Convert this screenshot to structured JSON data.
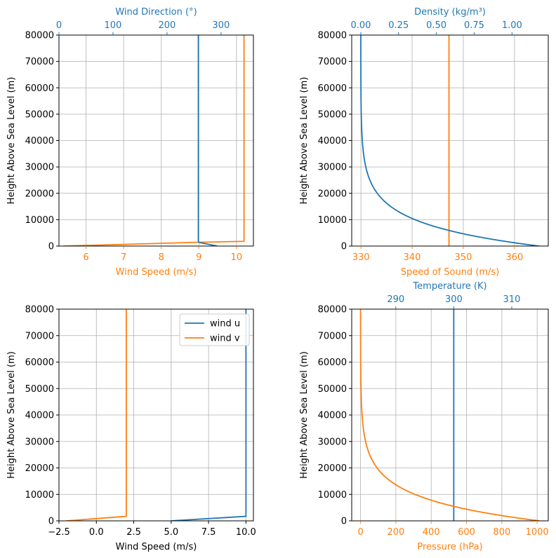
{
  "colors": {
    "blue": "#1f77b4",
    "orange": "#ff7f0e",
    "grid": "#b0b0b0",
    "axis": "#000000"
  },
  "chart_data": [
    {
      "type": "line",
      "grid": true,
      "ylabel": "Height Above Sea Level (m)",
      "ylim": [
        0,
        80000
      ],
      "yticks": [
        0,
        10000,
        20000,
        30000,
        40000,
        50000,
        60000,
        70000,
        80000
      ],
      "bottom_axis": {
        "label": "Wind Speed (m/s)",
        "color": "orange",
        "lim": [
          5.28,
          10.45
        ],
        "ticks": [
          6,
          7,
          8,
          9,
          10
        ],
        "tick_labels": [
          "6",
          "7",
          "8",
          "9",
          "10"
        ]
      },
      "top_axis": {
        "label": "Wind Direction (°)",
        "color": "blue",
        "lim": [
          0,
          360
        ],
        "ticks": [
          0,
          100,
          200,
          300
        ],
        "tick_labels": [
          "0",
          "100",
          "200",
          "300"
        ]
      },
      "series": [
        {
          "color": "orange",
          "axis": "bottom",
          "points": [
            [
              5.4,
              0
            ],
            [
              8.9,
              1400
            ],
            [
              10.2,
              1800
            ],
            [
              10.2,
              80000
            ]
          ]
        },
        {
          "color": "blue",
          "axis": "top",
          "points": [
            [
              293,
              0
            ],
            [
              259,
              1400
            ],
            [
              258,
              1800
            ],
            [
              258,
              80000
            ]
          ]
        }
      ]
    },
    {
      "type": "line",
      "grid": true,
      "ylabel": "Height Above Sea Level (m)",
      "ylim": [
        0,
        80000
      ],
      "yticks": [
        0,
        10000,
        20000,
        30000,
        40000,
        50000,
        60000,
        70000,
        80000
      ],
      "bottom_axis": {
        "label": "Speed of Sound (m/s)",
        "color": "orange",
        "lim": [
          328.2,
          366.6
        ],
        "ticks": [
          330,
          340,
          350,
          360
        ],
        "tick_labels": [
          "330",
          "340",
          "350",
          "360"
        ]
      },
      "top_axis": {
        "label": "Density (kg/m³)",
        "color": "blue",
        "lim": [
          -0.06,
          1.24
        ],
        "ticks": [
          0.0,
          0.25,
          0.5,
          0.75,
          1.0
        ],
        "tick_labels": [
          "0.00",
          "0.25",
          "0.50",
          "0.75",
          "1.00"
        ]
      },
      "series": [
        {
          "color": "orange",
          "axis": "bottom",
          "points": [
            [
              347.2,
              0
            ],
            [
              347.2,
              80000
            ]
          ]
        },
        {
          "color": "blue",
          "axis": "top",
          "profile": "density",
          "surface_value": 1.18,
          "scale_height": 8400,
          "y_min": 0,
          "y_max": 80000
        }
      ]
    },
    {
      "type": "line",
      "grid": true,
      "ylabel": "Height Above Sea Level (m)",
      "ylim": [
        0,
        80000
      ],
      "yticks": [
        0,
        10000,
        20000,
        30000,
        40000,
        50000,
        60000,
        70000,
        80000
      ],
      "legend": "top-right",
      "bottom_axis": {
        "label": "Wind Speed (m/s)",
        "color": "black",
        "lim": [
          -2.5,
          10.5
        ],
        "ticks": [
          -2.5,
          0.0,
          2.5,
          5.0,
          7.5,
          10.0
        ],
        "tick_labels": [
          "−2.5",
          "0.0",
          "2.5",
          "5.0",
          "7.5",
          "10.0"
        ]
      },
      "series": [
        {
          "name": "wind u",
          "color": "blue",
          "axis": "bottom",
          "points": [
            [
              5.0,
              0
            ],
            [
              10.0,
              1700
            ],
            [
              10.0,
              80000
            ]
          ]
        },
        {
          "name": "wind v",
          "color": "orange",
          "axis": "bottom",
          "points": [
            [
              -2.0,
              0
            ],
            [
              2.0,
              1700
            ],
            [
              2.0,
              80000
            ]
          ]
        }
      ]
    },
    {
      "type": "line",
      "grid": true,
      "ylabel": "Height Above Sea Level (m)",
      "ylim": [
        0,
        80000
      ],
      "yticks": [
        0,
        10000,
        20000,
        30000,
        40000,
        50000,
        60000,
        70000,
        80000
      ],
      "bottom_axis": {
        "label": "Pressure (hPa)",
        "color": "orange",
        "lim": [
          -50,
          1063
        ],
        "ticks": [
          0,
          200,
          400,
          600,
          800,
          1000
        ],
        "tick_labels": [
          "0",
          "200",
          "400",
          "600",
          "800",
          "1000"
        ]
      },
      "top_axis": {
        "label": "Temperature (K)",
        "color": "blue",
        "lim": [
          282.4,
          316.3
        ],
        "ticks": [
          290,
          300,
          310
        ],
        "tick_labels": [
          "290",
          "300",
          "310"
        ]
      },
      "series": [
        {
          "color": "blue",
          "axis": "top",
          "points": [
            [
              300,
              0
            ],
            [
              300,
              80000
            ]
          ]
        },
        {
          "color": "orange",
          "axis": "bottom",
          "profile": "pressure",
          "surface_value": 1013,
          "scale_height": 8400,
          "y_min": 0,
          "y_max": 80000
        }
      ]
    }
  ]
}
